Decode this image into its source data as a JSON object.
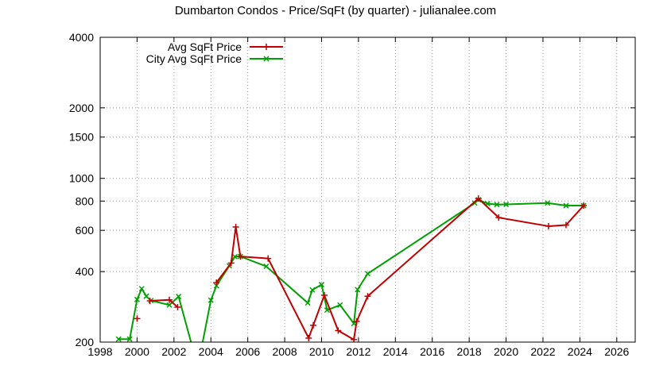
{
  "chart_data": {
    "type": "line",
    "title": "Dumbarton Condos - Price/SqFt (by quarter) - julianalee.com",
    "xlabel": "",
    "ylabel": "",
    "x_scale": "linear",
    "y_scale": "log",
    "xlim": [
      1998,
      2027
    ],
    "ylim": [
      200,
      4000
    ],
    "x_ticks": [
      1998,
      2000,
      2002,
      2004,
      2006,
      2008,
      2010,
      2012,
      2014,
      2016,
      2018,
      2020,
      2022,
      2024,
      2026
    ],
    "x_tick_labels": [
      "1998",
      "2000",
      "2002",
      "2004",
      "2006",
      "2008",
      "2010",
      "2012",
      "2014",
      "2016",
      "2018",
      "2020",
      "2022",
      "2024",
      "2026"
    ],
    "y_ticks": [
      200,
      400,
      600,
      800,
      1000,
      1500,
      2000,
      4000
    ],
    "y_tick_labels": [
      "200",
      "400",
      "600",
      "800",
      "1000",
      "1500",
      "2000",
      "4000"
    ],
    "grid": true,
    "legend_position": "top-left",
    "series": [
      {
        "name": "Avg SqFt Price",
        "color": "#c00000",
        "marker": "plus",
        "segments": [
          [
            [
              2000.0,
              252
            ]
          ],
          [
            [
              2000.7,
              300
            ],
            [
              2001.75,
              303
            ],
            [
              2002.2,
              282
            ]
          ],
          [
            [
              2004.3,
              359
            ],
            [
              2005.1,
              435
            ],
            [
              2005.35,
              620
            ],
            [
              2005.6,
              464
            ],
            [
              2007.1,
              455
            ],
            [
              2009.3,
              208
            ],
            [
              2009.55,
              236
            ],
            [
              2010.15,
              317
            ],
            [
              2010.9,
              224
            ],
            [
              2011.75,
              205
            ],
            [
              2011.9,
              245
            ],
            [
              2012.5,
              314
            ],
            [
              2018.5,
              820
            ],
            [
              2019.6,
              680
            ],
            [
              2022.3,
              625
            ],
            [
              2023.25,
              632
            ],
            [
              2024.2,
              765
            ]
          ]
        ]
      },
      {
        "name": "City Avg SqFt Price",
        "color": "#00a000",
        "marker": "x",
        "segments": [
          [
            [
              1999.0,
              206
            ],
            [
              1999.6,
              206
            ],
            [
              2000.0,
              304
            ],
            [
              2000.25,
              338
            ],
            [
              2000.5,
              314
            ],
            [
              2000.75,
              301
            ],
            [
              2001.75,
              288
            ],
            [
              2002.25,
              313
            ],
            [
              2003.0,
              190
            ],
            [
              2003.5,
              190
            ],
            [
              2004.0,
              302
            ],
            [
              2004.3,
              348
            ],
            [
              2005.0,
              423
            ],
            [
              2005.3,
              463
            ],
            [
              2005.6,
              464
            ],
            [
              2007.0,
              421
            ],
            [
              2009.25,
              294
            ],
            [
              2009.5,
              334
            ],
            [
              2010.0,
              352
            ],
            [
              2010.3,
              274
            ],
            [
              2011.0,
              288
            ],
            [
              2011.75,
              240
            ],
            [
              2011.95,
              335
            ],
            [
              2012.5,
              392
            ],
            [
              2018.3,
              784
            ],
            [
              2018.5,
              810
            ],
            [
              2019.0,
              780
            ],
            [
              2019.5,
              773
            ],
            [
              2020.0,
              774
            ],
            [
              2022.25,
              785
            ],
            [
              2023.25,
              765
            ],
            [
              2024.2,
              765
            ]
          ]
        ]
      }
    ]
  }
}
